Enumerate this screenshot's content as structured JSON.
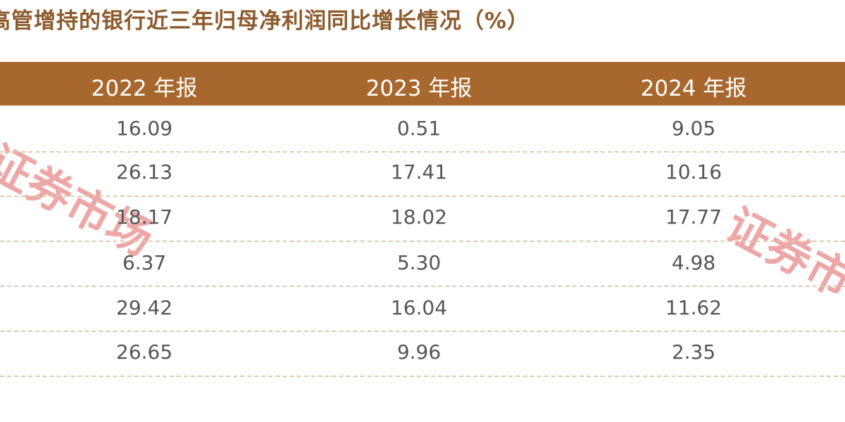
{
  "title": "高管增持的银行近三年归母净利润同比增长情况（%）",
  "table": {
    "header": [
      "2022 年报",
      "2023 年报",
      "2024 年报"
    ],
    "rows": [
      [
        "16.09",
        "0.51",
        "9.05"
      ],
      [
        "26.13",
        "17.41",
        "10.16"
      ],
      [
        "18.17",
        "18.02",
        "17.77"
      ],
      [
        "6.37",
        "5.30",
        "4.98"
      ],
      [
        "29.42",
        "16.04",
        "11.62"
      ],
      [
        "26.65",
        "9.96",
        "2.35"
      ]
    ]
  },
  "watermarks": [
    "证券市场",
    "证券市"
  ]
}
